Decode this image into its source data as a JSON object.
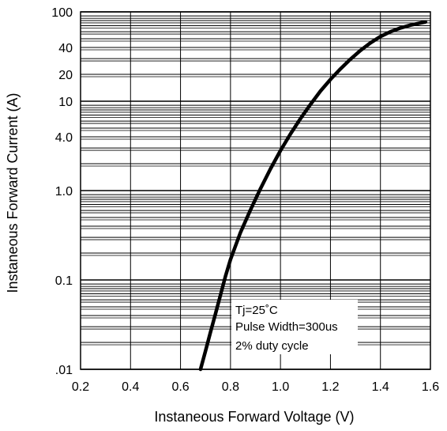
{
  "chart_data": {
    "type": "line",
    "xlabel": "Instaneous Forward Voltage (V)",
    "ylabel": "Instaneous Forward Current (A)",
    "xlim": [
      0.2,
      1.6
    ],
    "ylim": [
      0.01,
      100
    ],
    "y_scale": "log",
    "grid": true,
    "x_ticks": [
      0.2,
      0.4,
      0.6,
      0.8,
      1.0,
      1.2,
      1.4,
      1.6
    ],
    "x_tick_labels": [
      "0.2",
      "0.4",
      "0.6",
      "0.8",
      "1.0",
      "1.2",
      "1.4",
      "1.6"
    ],
    "y_ticks": [
      0.01,
      0.1,
      1.0,
      4.0,
      10,
      20,
      40,
      100
    ],
    "y_tick_labels": [
      ".01",
      "0.1",
      "1.0",
      "4.0",
      "10",
      "20",
      "40",
      "100"
    ],
    "series": [
      {
        "x": [
          0.68,
          0.7,
          0.72,
          0.74,
          0.76,
          0.78,
          0.8,
          0.84,
          0.88,
          0.92,
          0.96,
          1.0,
          1.04,
          1.08,
          1.12,
          1.16,
          1.2,
          1.24,
          1.28,
          1.32,
          1.36,
          1.4,
          1.44,
          1.48,
          1.52,
          1.56,
          1.58
        ],
        "y": [
          0.01,
          0.016,
          0.026,
          0.042,
          0.068,
          0.11,
          0.17,
          0.34,
          0.61,
          1.05,
          1.75,
          2.8,
          4.3,
          6.4,
          9.2,
          13,
          17.5,
          23,
          29.5,
          37,
          45,
          53,
          60,
          66,
          71,
          75,
          77
        ]
      }
    ],
    "annotations": [
      "Tj=25˚C",
      "Pulse Width=300us",
      "2% duty cycle"
    ]
  },
  "colors": {
    "grid": "#000000",
    "curve": "#000000",
    "background": "#ffffff"
  }
}
